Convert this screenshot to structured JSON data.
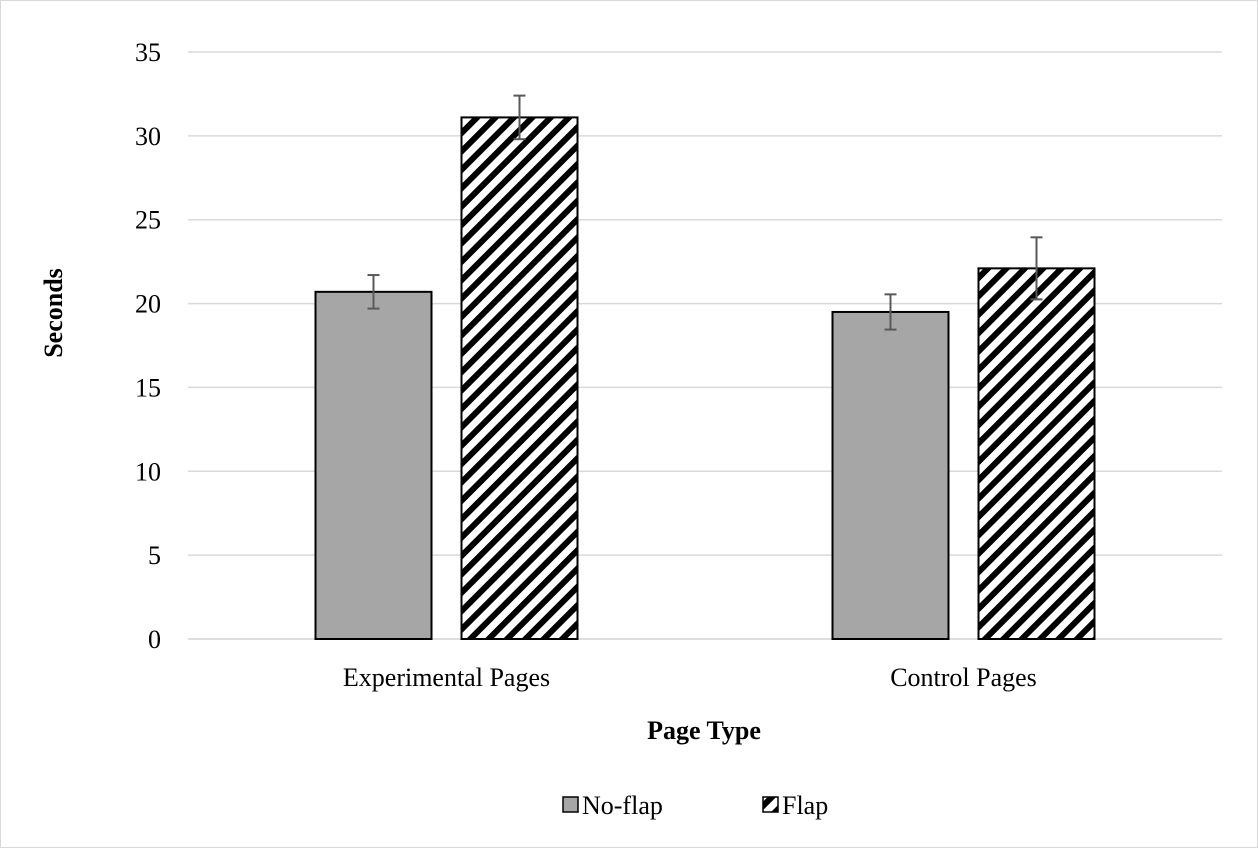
{
  "chart_data": {
    "type": "bar",
    "title": "",
    "xlabel": "Page Type",
    "ylabel": "Seconds",
    "categories": [
      "Experimental Pages",
      "Control Pages"
    ],
    "series": [
      {
        "name": "No-flap",
        "values": [
          20.7,
          19.5
        ],
        "error": [
          1.0,
          1.05
        ],
        "color": "#a6a6a6",
        "pattern": "solid"
      },
      {
        "name": "Flap",
        "values": [
          31.1,
          22.1
        ],
        "error": [
          1.3,
          1.85
        ],
        "color": "#000000",
        "pattern": "diagonal-stripes"
      }
    ],
    "ylim": [
      0,
      35
    ],
    "yticks": [
      "0",
      "5",
      "10",
      "15",
      "20",
      "25",
      "30",
      "35"
    ],
    "grid": true,
    "legend_position": "bottom"
  }
}
